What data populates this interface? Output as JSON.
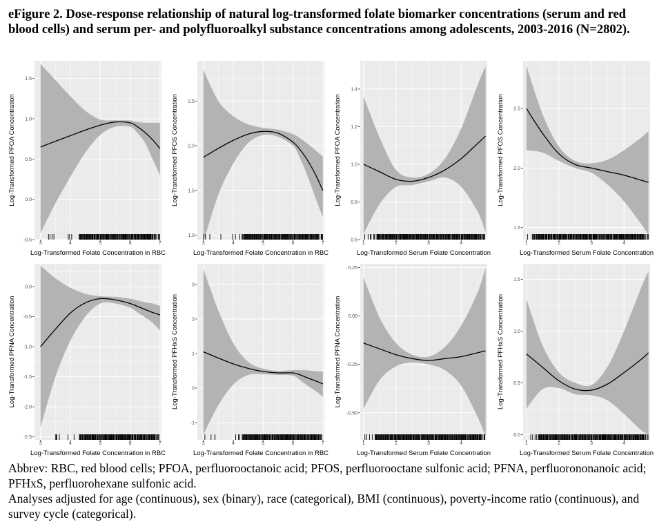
{
  "figure": {
    "title": "eFigure 2. Dose-response relationship of natural log-transformed folate biomarker concentrations (serum and red blood cells) and serum per- and polyfluoroalkyl substance concentrations among adolescents, 2003-2016 (N=2802).",
    "footnote_line1": "Abbrev: RBC, red blood cells; PFOA, perfluorooctanoic acid; PFOS, perfluorooctane sulfonic acid; PFNA, perfluorononanoic acid; PFHxS, perfluorohexane sulfonic acid.",
    "footnote_line2": "Analyses adjusted for age (continuous), sex (binary), race (categorical), BMI (continuous), poverty-income ratio (continuous), and survey cycle (categorical)."
  },
  "colors": {
    "panel_bg": "#ebebeb",
    "grid_major": "#ffffff",
    "ribbon": "#b3b3b3",
    "line": "#000000",
    "rug": "#000000",
    "axis_text": "#4d4d4d"
  },
  "chart_data": [
    {
      "type": "line",
      "xlabel": "Log-Transformed Folate Concentration in RBC",
      "ylabel": "Log-Transformed PFOA Concentration",
      "xlim": [
        2.8,
        7.05
      ],
      "ylim": [
        -0.5,
        1.72
      ],
      "xticks": [
        3,
        4,
        5,
        6,
        7
      ],
      "yticks": [
        -0.5,
        0.0,
        0.5,
        1.0,
        1.5
      ],
      "ytick_labels": [
        "-0.5",
        "0.0",
        "0.5",
        "1.0",
        "1.5"
      ],
      "x": [
        3.0,
        3.5,
        4.0,
        4.5,
        5.0,
        5.5,
        6.0,
        6.25,
        6.5,
        6.75,
        7.0
      ],
      "fit": [
        0.65,
        0.72,
        0.79,
        0.86,
        0.92,
        0.96,
        0.95,
        0.9,
        0.83,
        0.74,
        0.63
      ],
      "lower": [
        -0.42,
        -0.05,
        0.28,
        0.58,
        0.8,
        0.9,
        0.9,
        0.82,
        0.7,
        0.5,
        0.3
      ],
      "upper": [
        1.68,
        1.48,
        1.28,
        1.1,
        0.99,
        0.98,
        0.98,
        0.96,
        0.95,
        0.95,
        0.95
      ],
      "rug_start": 4.3
    },
    {
      "type": "line",
      "xlabel": "Log-Transformed Folate Concentration in RBC",
      "ylabel": "Log-Transformed PFOS Concentration",
      "xlim": [
        2.8,
        7.05
      ],
      "ylim": [
        0.95,
        2.95
      ],
      "xticks": [
        3,
        4,
        5,
        6,
        7
      ],
      "yticks": [
        1.0,
        1.5,
        2.0,
        2.5
      ],
      "ytick_labels": [
        "1.0",
        "1.5",
        "2.0",
        "2.5"
      ],
      "x": [
        3.0,
        3.5,
        4.0,
        4.5,
        5.0,
        5.5,
        6.0,
        6.25,
        6.5,
        6.75,
        7.0
      ],
      "fit": [
        1.87,
        1.97,
        2.06,
        2.13,
        2.16,
        2.14,
        2.04,
        1.95,
        1.83,
        1.68,
        1.5
      ],
      "lower": [
        0.92,
        1.45,
        1.8,
        2.03,
        2.12,
        2.1,
        2.0,
        1.85,
        1.65,
        1.42,
        1.2
      ],
      "upper": [
        2.85,
        2.5,
        2.33,
        2.24,
        2.2,
        2.18,
        2.13,
        2.08,
        2.02,
        1.95,
        1.88
      ],
      "rug_start": 4.3
    },
    {
      "type": "line",
      "xlabel": "Log-Transformed Serum Folate Concentration",
      "ylabel": "Log-Transformed PFOA Concentration",
      "xlim": [
        0.9,
        4.8
      ],
      "ylim": [
        0.6,
        1.55
      ],
      "xticks": [
        1,
        2,
        3,
        4
      ],
      "yticks": [
        0.6,
        0.8,
        1.0,
        1.2,
        1.4
      ],
      "ytick_labels": [
        "0.6",
        "0.8",
        "1.0",
        "1.2",
        "1.4"
      ],
      "x": [
        1.0,
        1.5,
        2.0,
        2.5,
        3.0,
        3.5,
        4.0,
        4.5,
        4.75
      ],
      "fit": [
        1.0,
        0.96,
        0.92,
        0.91,
        0.93,
        0.97,
        1.03,
        1.11,
        1.15
      ],
      "lower": [
        0.63,
        0.79,
        0.88,
        0.89,
        0.91,
        0.93,
        0.88,
        0.75,
        0.64
      ],
      "upper": [
        1.36,
        1.14,
        0.97,
        0.93,
        0.95,
        1.03,
        1.19,
        1.42,
        1.52
      ],
      "rug_start": 1.4
    },
    {
      "type": "line",
      "xlabel": "Log-Transformed Serum Folate Concentration",
      "ylabel": "Log-Transformed PFOS Concentration",
      "xlim": [
        0.9,
        4.8
      ],
      "ylim": [
        1.4,
        2.9
      ],
      "xticks": [
        1,
        2,
        3,
        4
      ],
      "yticks": [
        1.5,
        2.0,
        2.5
      ],
      "ytick_labels": [
        "1.5",
        "2.0",
        "2.5"
      ],
      "x": [
        1.0,
        1.5,
        2.0,
        2.5,
        3.0,
        3.5,
        4.0,
        4.5,
        4.75
      ],
      "fit": [
        2.5,
        2.29,
        2.12,
        2.03,
        2.0,
        1.97,
        1.94,
        1.9,
        1.88
      ],
      "lower": [
        2.15,
        2.13,
        2.06,
        2.0,
        1.96,
        1.86,
        1.72,
        1.54,
        1.44
      ],
      "upper": [
        2.86,
        2.45,
        2.18,
        2.06,
        2.04,
        2.07,
        2.15,
        2.25,
        2.31
      ],
      "rug_start": 1.3
    },
    {
      "type": "line",
      "xlabel": "Log-Transformed Folate Concentration in RBC",
      "ylabel": "Log-Transformed PFNA Concentration",
      "xlim": [
        2.8,
        7.05
      ],
      "ylim": [
        -2.55,
        0.38
      ],
      "xticks": [
        3,
        4,
        5,
        6,
        7
      ],
      "yticks": [
        -2.5,
        -2.0,
        -1.5,
        -1.0,
        -0.5,
        0.0
      ],
      "ytick_labels": [
        "-2.5",
        "-2.0",
        "-1.5",
        "-1.0",
        "-0.5",
        "0.0"
      ],
      "x": [
        3.0,
        3.5,
        4.0,
        4.5,
        5.0,
        5.5,
        6.0,
        6.25,
        6.5,
        6.75,
        7.0
      ],
      "fit": [
        -1.0,
        -0.71,
        -0.44,
        -0.27,
        -0.2,
        -0.22,
        -0.28,
        -0.33,
        -0.38,
        -0.43,
        -0.47
      ],
      "lower": [
        -2.35,
        -1.5,
        -0.9,
        -0.5,
        -0.28,
        -0.28,
        -0.35,
        -0.43,
        -0.51,
        -0.6,
        -0.73
      ],
      "upper": [
        0.35,
        0.14,
        -0.02,
        -0.12,
        -0.16,
        -0.17,
        -0.2,
        -0.23,
        -0.26,
        -0.28,
        -0.32
      ],
      "rug_start": 4.3
    },
    {
      "type": "line",
      "xlabel": "Log-Transformed Folate Concentration in RBC",
      "ylabel": "Log-Transformed PFHxS Concentration",
      "xlim": [
        2.8,
        7.05
      ],
      "ylim": [
        -1.5,
        3.6
      ],
      "xticks": [
        3,
        4,
        5,
        6,
        7
      ],
      "yticks": [
        -1,
        0,
        1,
        2,
        3
      ],
      "ytick_labels": [
        "-1",
        "0",
        "1",
        "2",
        "3"
      ],
      "x": [
        3.0,
        3.5,
        4.0,
        4.5,
        5.0,
        5.5,
        6.0,
        6.25,
        6.5,
        6.75,
        7.0
      ],
      "fit": [
        1.05,
        0.87,
        0.7,
        0.57,
        0.48,
        0.44,
        0.44,
        0.38,
        0.29,
        0.21,
        0.12
      ],
      "lower": [
        -1.35,
        -0.5,
        0.1,
        0.38,
        0.4,
        0.38,
        0.36,
        0.22,
        0.06,
        -0.08,
        -0.25
      ],
      "upper": [
        3.45,
        2.25,
        1.3,
        0.76,
        0.56,
        0.5,
        0.52,
        0.52,
        0.51,
        0.49,
        0.48
      ],
      "rug_start": 4.3
    },
    {
      "type": "line",
      "xlabel": "Log-Transformed Serum Folate Concentration",
      "ylabel": "Log-Transformed PFNA Concentration",
      "xlim": [
        0.9,
        4.8
      ],
      "ylim": [
        -0.64,
        0.27
      ],
      "xticks": [
        1,
        2,
        3,
        4
      ],
      "yticks": [
        -0.5,
        -0.25,
        0.0,
        0.25
      ],
      "ytick_labels": [
        "-0.50",
        "-0.25",
        "0.00",
        "0.25"
      ],
      "x": [
        1.0,
        1.5,
        2.0,
        2.5,
        3.0,
        3.5,
        4.0,
        4.5,
        4.75
      ],
      "fit": [
        -0.14,
        -0.17,
        -0.2,
        -0.22,
        -0.23,
        -0.22,
        -0.21,
        -0.19,
        -0.18
      ],
      "lower": [
        -0.48,
        -0.33,
        -0.26,
        -0.24,
        -0.25,
        -0.28,
        -0.36,
        -0.52,
        -0.62
      ],
      "upper": [
        0.2,
        -0.01,
        -0.14,
        -0.2,
        -0.21,
        -0.16,
        -0.05,
        0.12,
        0.25
      ],
      "rug_start": 1.4
    },
    {
      "type": "line",
      "xlabel": "Log-Transformed Serum Folate Concentration",
      "ylabel": "Log-Transformed PFHxS Concentration",
      "xlim": [
        0.9,
        4.8
      ],
      "ylim": [
        -0.05,
        1.65
      ],
      "xticks": [
        1,
        2,
        3,
        4
      ],
      "yticks": [
        0.0,
        0.5,
        1.0,
        1.5
      ],
      "ytick_labels": [
        "0.0",
        "0.5",
        "1.0",
        "1.5"
      ],
      "x": [
        1.0,
        1.5,
        2.0,
        2.5,
        3.0,
        3.5,
        4.0,
        4.5,
        4.75
      ],
      "fit": [
        0.78,
        0.65,
        0.52,
        0.44,
        0.43,
        0.49,
        0.6,
        0.72,
        0.79
      ],
      "lower": [
        0.25,
        0.44,
        0.45,
        0.39,
        0.38,
        0.33,
        0.2,
        0.05,
        0.0
      ],
      "upper": [
        1.31,
        0.86,
        0.6,
        0.5,
        0.48,
        0.66,
        1.0,
        1.4,
        1.58
      ],
      "rug_start": 1.4
    }
  ]
}
